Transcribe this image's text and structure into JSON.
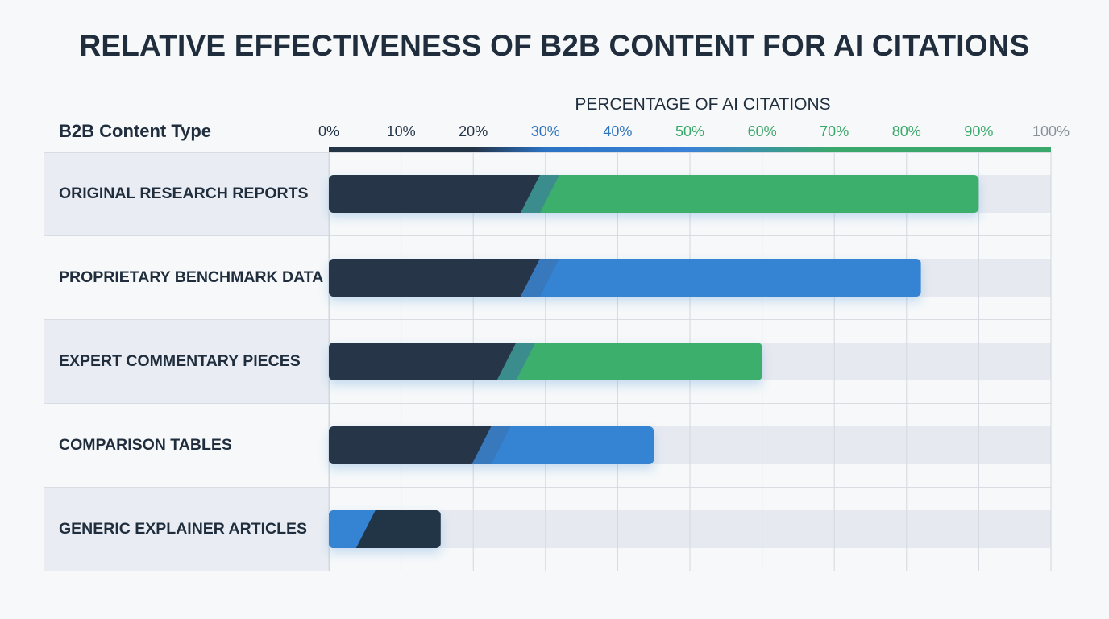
{
  "chart_data": {
    "type": "bar",
    "orientation": "horizontal",
    "title": "RELATIVE EFFECTIVENESS OF B2B CONTENT FOR AI CITATIONS",
    "xlabel": "PERCENTAGE OF AI CITATIONS",
    "ylabel": "B2B Content Type",
    "xlim": [
      0,
      100
    ],
    "ticks": [
      "0%",
      "10%",
      "20%",
      "30%",
      "40%",
      "50%",
      "60%",
      "70%",
      "80%",
      "90%",
      "100%"
    ],
    "tick_colors": [
      "#243447",
      "#243447",
      "#243447",
      "#2f73bf",
      "#2f73bf",
      "#3aa86a",
      "#3aa86a",
      "#3aa86a",
      "#3aa86a",
      "#3aa86a",
      "#8a9299"
    ],
    "categories": [
      "ORIGINAL RESEARCH REPORTS",
      "PROPRIETARY BENCHMARK DATA",
      "EXPERT COMMENTARY PIECES",
      "COMPARISON TABLES",
      "GENERIC EXPLAINER ARTICLES"
    ],
    "values": [
      90,
      82,
      60,
      45,
      15.5
    ],
    "bar_colors": [
      "#3daf6c",
      "#3484d4",
      "#3daf6c",
      "#3484d4",
      "#243447"
    ],
    "bar_start_colors": [
      "#263547",
      "#263547",
      "#263547",
      "#263547",
      "#3484d4"
    ],
    "grid": true
  },
  "colors": {
    "dark": "#263547",
    "blue": "#3484d4",
    "green": "#3daf6c",
    "track": "#e6e9f0",
    "highlight_row": "#e9edf3"
  }
}
